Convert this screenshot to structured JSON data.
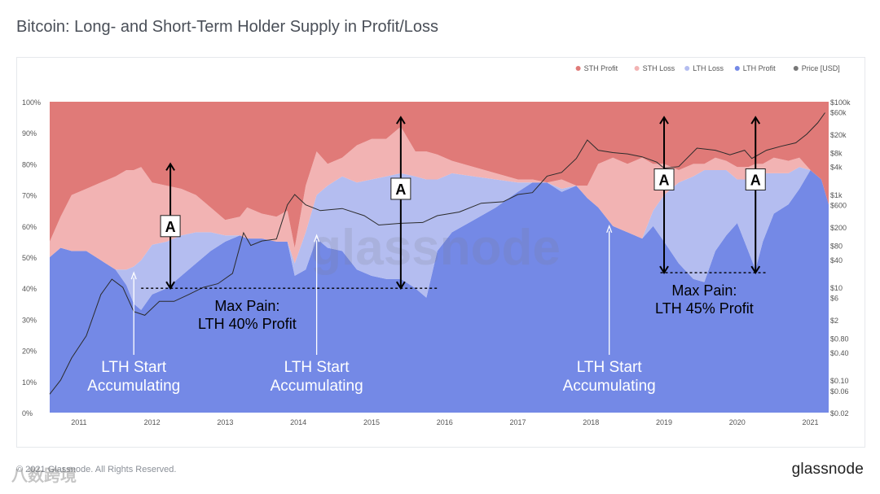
{
  "header": {
    "title": "Bitcoin: Long- and Short-Term Holder Supply in Profit/Loss"
  },
  "footer": {
    "copyright": "© 2021 Glassnode. All Rights Reserved.",
    "brand": "glassnode",
    "watermark_text": "glassnode",
    "corner_mark": "八数跨境"
  },
  "colors": {
    "sth_profit": "#e07a78",
    "sth_loss": "#f2b3b3",
    "lth_loss": "#b4bdf0",
    "lth_profit": "#7489e6",
    "price": "#2b2b2b"
  },
  "chart_data": {
    "type": "area",
    "title": "Bitcoin: Long- and Short-Term Holder Supply in Profit/Loss",
    "x": [
      2010.6,
      2010.75,
      2010.9,
      2011.1,
      2011.3,
      2011.5,
      2011.65,
      2011.75,
      2011.85,
      2012.0,
      2012.2,
      2012.4,
      2012.6,
      2012.8,
      2013.0,
      2013.2,
      2013.3,
      2013.5,
      2013.7,
      2013.85,
      2013.95,
      2014.1,
      2014.25,
      2014.4,
      2014.6,
      2014.8,
      2015.0,
      2015.2,
      2015.4,
      2015.6,
      2015.75,
      2015.9,
      2016.1,
      2016.4,
      2016.7,
      2017.0,
      2017.2,
      2017.4,
      2017.6,
      2017.8,
      2017.95,
      2018.1,
      2018.3,
      2018.5,
      2018.7,
      2018.85,
      2019.0,
      2019.2,
      2019.4,
      2019.55,
      2019.7,
      2019.85,
      2020.0,
      2020.15,
      2020.25,
      2020.35,
      2020.5,
      2020.7,
      2020.85,
      2021.0,
      2021.15,
      2021.25
    ],
    "series": [
      {
        "name": "LTH Profit",
        "values": [
          50,
          53,
          52,
          52,
          49,
          46,
          41,
          35,
          33,
          38,
          40,
          44,
          48,
          52,
          55,
          57,
          56,
          56,
          55,
          55,
          44,
          46,
          56,
          53,
          52,
          46,
          44,
          43,
          43,
          40,
          37,
          52,
          58,
          62,
          66,
          71,
          74,
          74,
          71,
          73,
          69,
          66,
          60,
          58,
          56,
          60,
          55,
          48,
          43,
          42,
          52,
          57,
          61,
          52,
          46,
          55,
          64,
          67,
          72,
          78,
          75,
          67
        ]
      },
      {
        "name": "LTH Loss",
        "values": [
          0,
          0,
          0,
          0,
          0,
          0,
          5,
          12,
          16,
          16,
          15,
          13,
          10,
          6,
          2,
          0,
          0,
          0,
          0,
          0,
          4,
          12,
          14,
          20,
          24,
          28,
          31,
          33,
          34,
          36,
          38,
          23,
          19,
          14,
          9,
          3,
          0,
          0,
          1,
          0,
          0,
          0,
          0,
          0,
          0,
          5,
          15,
          26,
          33,
          36,
          26,
          21,
          14,
          23,
          30,
          22,
          13,
          10,
          7,
          0,
          0,
          0
        ]
      },
      {
        "name": "STH Loss",
        "values": [
          5,
          10,
          18,
          20,
          25,
          30,
          32,
          31,
          30,
          20,
          18,
          15,
          12,
          8,
          5,
          6,
          10,
          8,
          8,
          10,
          5,
          15,
          14,
          7,
          6,
          12,
          13,
          12,
          15,
          8,
          9,
          8,
          4,
          3,
          2,
          1,
          1,
          0,
          3,
          0,
          4,
          14,
          22,
          22,
          26,
          15,
          10,
          4,
          4,
          2,
          4,
          3,
          4,
          4,
          4,
          3,
          5,
          4,
          3,
          0,
          0,
          0
        ]
      },
      {
        "name": "STH Profit",
        "values": [
          45,
          37,
          30,
          28,
          26,
          24,
          22,
          22,
          21,
          26,
          27,
          28,
          30,
          34,
          38,
          37,
          34,
          36,
          37,
          35,
          47,
          27,
          16,
          20,
          18,
          14,
          12,
          12,
          8,
          16,
          16,
          17,
          19,
          21,
          23,
          25,
          25,
          26,
          25,
          27,
          27,
          20,
          18,
          20,
          18,
          20,
          20,
          22,
          20,
          20,
          18,
          19,
          21,
          21,
          20,
          20,
          18,
          19,
          18,
          22,
          25,
          33
        ]
      }
    ],
    "price_x": [
      2010.6,
      2010.75,
      2010.9,
      2011.1,
      2011.3,
      2011.45,
      2011.6,
      2011.75,
      2011.9,
      2012.1,
      2012.3,
      2012.5,
      2012.7,
      2012.9,
      2013.1,
      2013.25,
      2013.35,
      2013.5,
      2013.7,
      2013.85,
      2013.95,
      2014.1,
      2014.3,
      2014.6,
      2014.9,
      2015.1,
      2015.4,
      2015.7,
      2015.9,
      2016.2,
      2016.5,
      2016.8,
      2017.0,
      2017.2,
      2017.4,
      2017.6,
      2017.8,
      2017.95,
      2018.1,
      2018.3,
      2018.5,
      2018.7,
      2018.9,
      2019.0,
      2019.2,
      2019.45,
      2019.7,
      2019.9,
      2020.1,
      2020.2,
      2020.4,
      2020.6,
      2020.8,
      2020.95,
      2021.1,
      2021.2
    ],
    "price_values": [
      0.05,
      0.1,
      0.3,
      0.9,
      7,
      15,
      10,
      3,
      2.5,
      5,
      5,
      7,
      10,
      12,
      20,
      150,
      80,
      100,
      110,
      600,
      1000,
      600,
      450,
      500,
      350,
      220,
      240,
      250,
      350,
      420,
      650,
      700,
      1000,
      1100,
      2500,
      3000,
      6000,
      15000,
      9000,
      8000,
      7500,
      6500,
      5000,
      3700,
      4000,
      10000,
      9000,
      7200,
      9000,
      6000,
      9000,
      11000,
      13000,
      20000,
      35000,
      58000
    ],
    "price_label": "Price [USD]",
    "legend": [
      "STH Profit",
      "STH Loss",
      "LTH Loss",
      "LTH Profit",
      "Price [USD]"
    ],
    "legend_position": "top-right",
    "x_ticks": [
      "2011",
      "2012",
      "2013",
      "2014",
      "2015",
      "2016",
      "2017",
      "2018",
      "2019",
      "2020",
      "2021"
    ],
    "y_left_ticks": [
      "0%",
      "10%",
      "20%",
      "30%",
      "40%",
      "50%",
      "60%",
      "70%",
      "80%",
      "90%",
      "100%"
    ],
    "y_right_ticks": [
      "$0.02",
      "$0.06",
      "$0.10",
      "$0.40",
      "$0.80",
      "$2",
      "$6",
      "$10",
      "$40",
      "$80",
      "$200",
      "$600",
      "$1k",
      "$4k",
      "$8k",
      "$20k",
      "$60k",
      "$100k"
    ],
    "y_right_tick_values": [
      0.02,
      0.06,
      0.1,
      0.4,
      0.8,
      2,
      6,
      10,
      40,
      80,
      200,
      600,
      1000,
      4000,
      8000,
      20000,
      60000,
      100000
    ],
    "y_left_range": [
      0,
      100
    ],
    "y_right_log_range": [
      0.02,
      100000
    ],
    "x_range": [
      2010.5,
      2021.25
    ],
    "grid": false,
    "annotations": {
      "start_labels": [
        {
          "x": 2011.75,
          "line1": "LTH Start",
          "line2": "Accumulating",
          "point_to": 45
        },
        {
          "x": 2014.25,
          "line1": "LTH Start",
          "line2": "Accumulating",
          "point_to": 57
        },
        {
          "x": 2018.25,
          "line1": "LTH Start",
          "line2": "Accumulating",
          "point_to": 60
        }
      ],
      "max_pain": [
        {
          "x_from": 2011.85,
          "x_to": 2015.9,
          "y": 40,
          "line1": "Max Pain:",
          "line2": "LTH 40% Profit",
          "label_x": 2013.3
        },
        {
          "x_from": 2018.95,
          "x_to": 2020.4,
          "y": 45,
          "line1": "Max Pain:",
          "line2": "LTH 45% Profit",
          "label_x": 2019.55
        }
      ],
      "a_arrows": [
        {
          "x": 2012.25,
          "y_top": 80,
          "y_bottom": 40,
          "label": "A",
          "label_y": 60
        },
        {
          "x": 2015.4,
          "y_top": 95,
          "y_bottom": 40,
          "label": "A",
          "label_y": 72
        },
        {
          "x": 2019.0,
          "y_top": 95,
          "y_bottom": 45,
          "label": "A",
          "label_y": 75
        },
        {
          "x": 2020.25,
          "y_top": 95,
          "y_bottom": 45,
          "label": "A",
          "label_y": 75
        }
      ]
    }
  }
}
